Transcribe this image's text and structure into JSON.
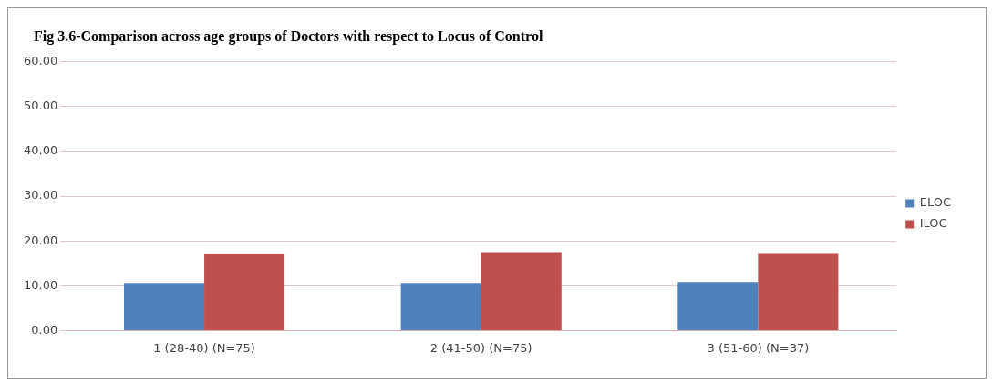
{
  "chart_data": {
    "type": "bar",
    "title": "Fig 3.6-Comparison across age groups of Doctors with respect to Locus of Control",
    "categories": [
      "1 (28-40) (N=75)",
      "2 (41-50) (N=75)",
      "3 (51-60) (N=37)"
    ],
    "series": [
      {
        "name": "ELOC",
        "color": "#4f81bd",
        "values": [
          10.6,
          10.6,
          10.8
        ]
      },
      {
        "name": "ILOC",
        "color": "#c0504d",
        "values": [
          17.2,
          17.5,
          17.3
        ]
      }
    ],
    "ylim": [
      0,
      60
    ],
    "yticks": [
      {
        "value": 0,
        "label": "0.00"
      },
      {
        "value": 10,
        "label": "10.00"
      },
      {
        "value": 20,
        "label": "20.00"
      },
      {
        "value": 30,
        "label": "30.00"
      },
      {
        "value": 40,
        "label": "40.00"
      },
      {
        "value": 50,
        "label": "50.00"
      },
      {
        "value": 60,
        "label": "60.00"
      }
    ],
    "grid": "y",
    "legend": "right"
  }
}
